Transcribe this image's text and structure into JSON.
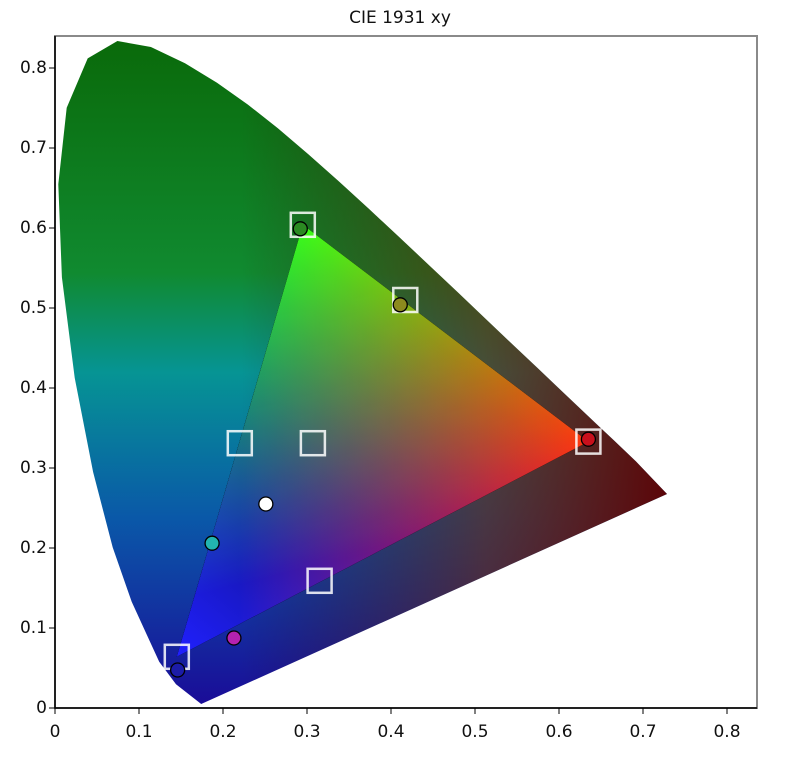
{
  "chart_data": {
    "type": "scatter",
    "title": "CIE 1931 xy",
    "xlim": [
      0,
      0.8357
    ],
    "ylim": [
      0,
      0.84
    ],
    "xticks": [
      0,
      0.1,
      0.2,
      0.3,
      0.4,
      0.5,
      0.6,
      0.7,
      0.8
    ],
    "yticks": [
      0,
      0.1,
      0.2,
      0.3,
      0.4,
      0.5,
      0.6,
      0.7,
      0.8
    ],
    "series": [
      {
        "marker": "square",
        "color": "#ffffff",
        "x": [
          0.635,
          0.295,
          0.145,
          0.22,
          0.307,
          0.315,
          0.417
        ],
        "y": [
          0.333,
          0.604,
          0.064,
          0.331,
          0.331,
          0.159,
          0.51
        ]
      },
      {
        "marker": "circle",
        "colors": [
          "#c8101c",
          "#2b8a22",
          "#1c1ca8",
          "#22b4b0",
          "#b422b0",
          "#8c8a1e",
          "#ffffff"
        ],
        "x": [
          0.635,
          0.292,
          0.146,
          0.187,
          0.213,
          0.411,
          0.251
        ],
        "y": [
          0.336,
          0.599,
          0.0475,
          0.206,
          0.0875,
          0.504,
          0.255
        ]
      }
    ]
  }
}
